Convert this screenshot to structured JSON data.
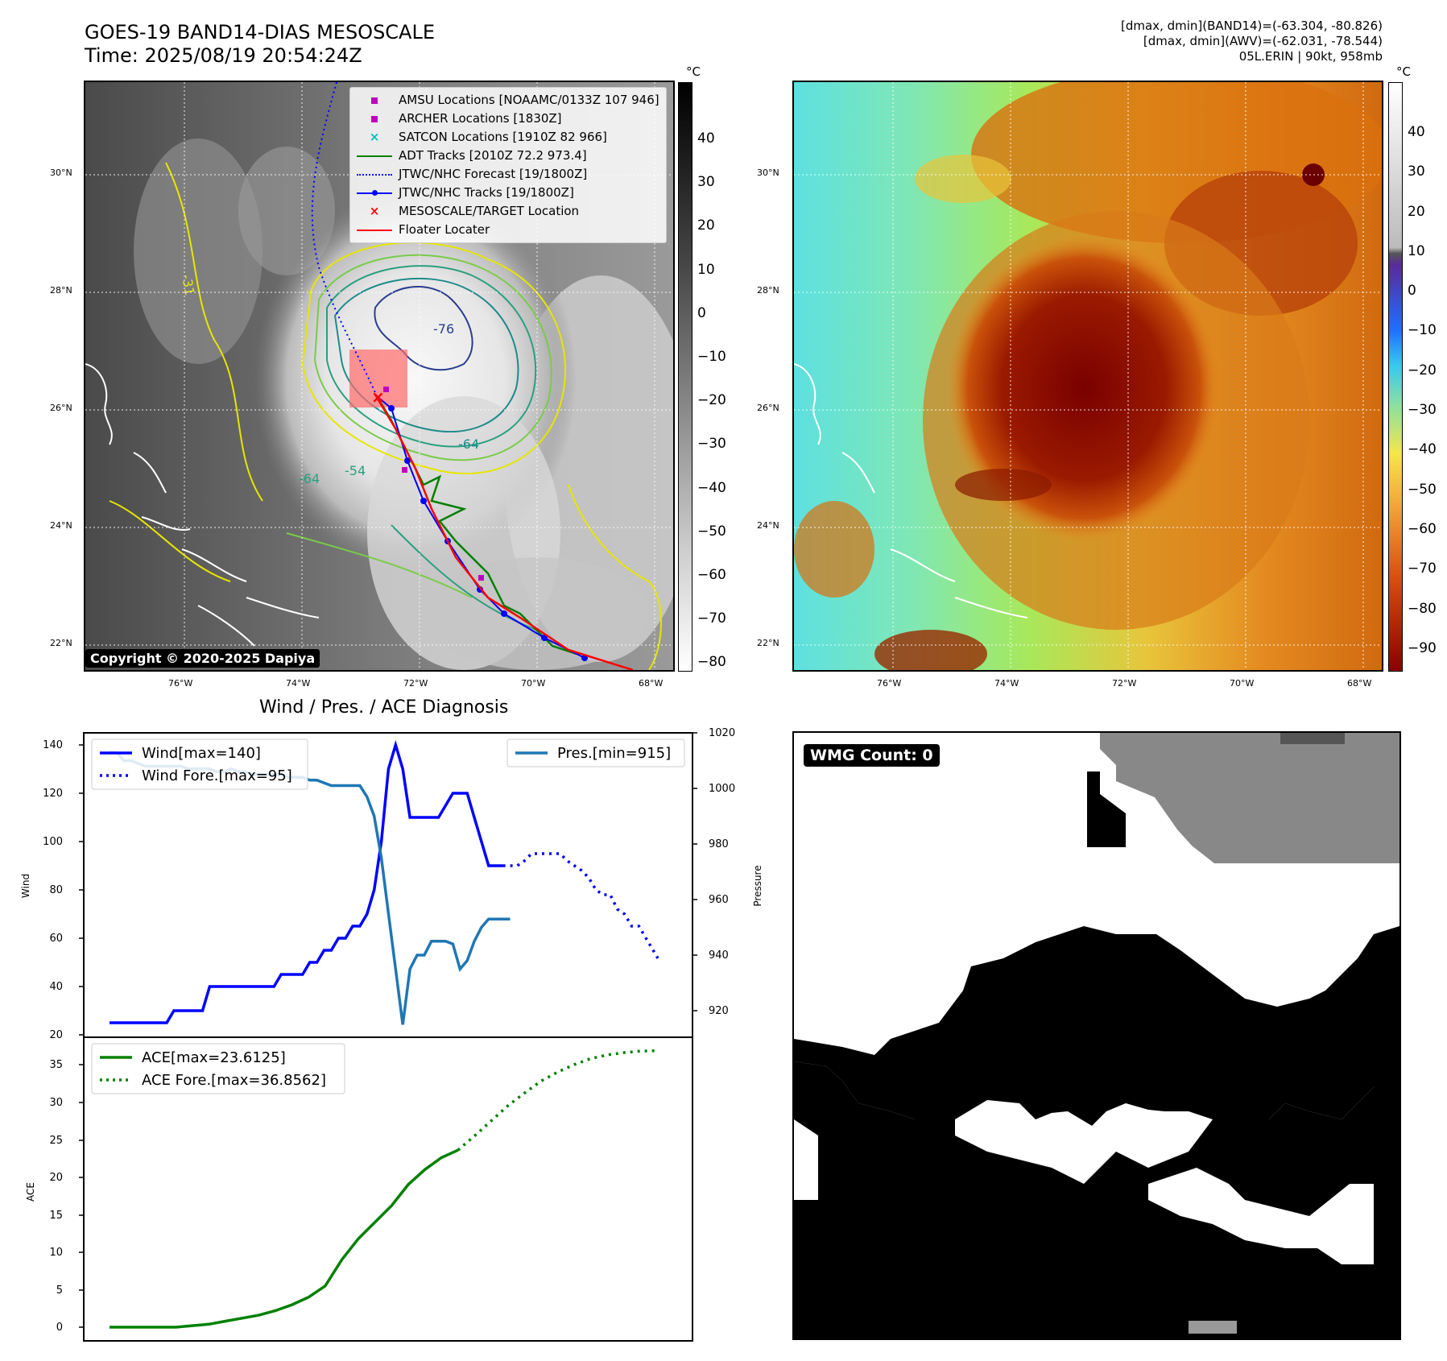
{
  "header": {
    "title_line1": "GOES-19 BAND14-DIAS MESOSCALE",
    "title_line2": "Time: 2025/08/19 20:54:24Z",
    "right_line1": "[dmax, dmin](BAND14)=(-63.304, -80.826)",
    "right_line2": "[dmax, dmin](AWV)=(-62.031, -78.544)",
    "right_line3": "05L.ERIN | 90kt, 958mb"
  },
  "map": {
    "lat_labels": [
      "30°N",
      "28°N",
      "26°N",
      "24°N",
      "22°N"
    ],
    "lon_labels": [
      "76°W",
      "74°W",
      "72°W",
      "70°W",
      "68°W"
    ],
    "contour_labels": [
      "-76",
      "-64",
      "-54",
      "-64",
      "-31"
    ],
    "copyright": "Copyright © 2020-2025 Dapiya",
    "legend": [
      {
        "label": "AMSU Locations [NOAAMC/0133Z 107 946]",
        "color": "#bf00bf",
        "marker": "square"
      },
      {
        "label": "ARCHER Locations [1830Z]",
        "color": "#bf00bf",
        "marker": "square"
      },
      {
        "label": "SATCON Locations [1910Z 82 966]",
        "color": "#00bfbf",
        "marker": "x"
      },
      {
        "label": "ADT Tracks [2010Z 72.2 973.4]",
        "color": "#008000",
        "marker": "line"
      },
      {
        "label": "JTWC/NHC Forecast [19/1800Z]",
        "color": "#0000ff",
        "marker": "dotted"
      },
      {
        "label": "JTWC/NHC Tracks [19/1800Z]",
        "color": "#0000ff",
        "marker": "line-dot"
      },
      {
        "label": "MESOSCALE/TARGET Location",
        "color": "#ff0000",
        "marker": "x"
      },
      {
        "label": "Floater Locater",
        "color": "#ff0000",
        "marker": "line"
      }
    ]
  },
  "colorbar_left": {
    "unit": "°C",
    "ticks": [
      "40",
      "30",
      "20",
      "10",
      "0",
      "−10",
      "−20",
      "−30",
      "−40",
      "−50",
      "−60",
      "−70",
      "−80"
    ]
  },
  "colorbar_right": {
    "unit": "°C",
    "ticks": [
      "40",
      "30",
      "20",
      "10",
      "0",
      "−10",
      "−20",
      "−30",
      "−40",
      "−50",
      "−60",
      "−70",
      "−80",
      "−90"
    ]
  },
  "diag": {
    "title": "Wind / Pres. / ACE Diagnosis",
    "wind_ylabel": "Wind",
    "pres_ylabel": "Pressure",
    "ace_ylabel": "ACE",
    "wind_ticks": [
      "140",
      "120",
      "100",
      "80",
      "60",
      "40",
      "20"
    ],
    "pres_ticks": [
      "1020",
      "1000",
      "980",
      "960",
      "940",
      "920"
    ],
    "ace_ticks": [
      "35",
      "30",
      "25",
      "20",
      "15",
      "10",
      "5",
      "0"
    ],
    "legend_wind": "Wind[max=140]",
    "legend_wind_fore": "Wind Fore.[max=95]",
    "legend_pres": "Pres.[min=915]",
    "legend_ace": "ACE[max=23.6125]",
    "legend_ace_fore": "ACE Fore.[max=36.8562]"
  },
  "wmg": {
    "label": "WMG Count: 0"
  },
  "colors": {
    "wind": "#0000ff",
    "pressure": "#1f77b4",
    "ace": "#008000"
  },
  "chart_data": [
    {
      "type": "line",
      "title": "Wind / Pres. / ACE Diagnosis",
      "ylabel": "Wind",
      "ylim": [
        20,
        145
      ],
      "series": [
        {
          "name": "Wind[max=140]",
          "x": [
            0,
            1,
            2,
            3,
            4,
            5,
            6,
            7,
            8,
            9,
            10,
            11,
            12,
            13,
            14,
            15,
            16,
            17,
            18,
            19,
            20,
            21,
            22,
            23,
            24,
            25,
            26,
            27,
            28,
            29,
            30,
            31,
            32,
            33,
            34,
            35,
            36,
            37,
            38,
            39,
            40,
            41,
            42,
            43,
            44,
            45,
            46,
            47,
            48,
            49,
            50,
            51,
            52,
            53,
            54,
            55,
            56,
            57,
            58,
            59,
            60,
            61,
            62,
            63,
            64
          ],
          "values": [
            25,
            25,
            25,
            25,
            25,
            25,
            25,
            25,
            25,
            30,
            30,
            30,
            30,
            30,
            40,
            40,
            40,
            40,
            40,
            40,
            40,
            40,
            40,
            40,
            45,
            45,
            45,
            45,
            50,
            50,
            55,
            55,
            60,
            60,
            65,
            65,
            70,
            80,
            100,
            130,
            140,
            130,
            110,
            110,
            110,
            110,
            110,
            115,
            120,
            120,
            120,
            110,
            100,
            90,
            90,
            90,
            null,
            null,
            null,
            null,
            null,
            null,
            null,
            null,
            null
          ]
        },
        {
          "name": "Wind Fore.[max=95]",
          "x": [
            55,
            56,
            57,
            58,
            59,
            60,
            61,
            62,
            63,
            64,
            65,
            66,
            67,
            68,
            69,
            70,
            71,
            72,
            73,
            74,
            75,
            76,
            77
          ],
          "values": [
            90,
            90,
            90,
            92,
            95,
            95,
            95,
            95,
            95,
            92,
            90,
            88,
            85,
            80,
            78,
            78,
            72,
            70,
            65,
            65,
            60,
            55,
            50
          ]
        }
      ]
    },
    {
      "type": "line",
      "ylabel": "Pressure",
      "ylim": [
        910,
        1020
      ],
      "series": [
        {
          "name": "Pres.[min=915]",
          "x": [
            0,
            1,
            2,
            3,
            4,
            5,
            6,
            7,
            8,
            9,
            10,
            11,
            12,
            13,
            14,
            15,
            16,
            17,
            18,
            19,
            20,
            21,
            22,
            23,
            24,
            25,
            26,
            27,
            28,
            29,
            30,
            31,
            32,
            33,
            34,
            35,
            36,
            37,
            38,
            39,
            40,
            41,
            42,
            43,
            44,
            45,
            46,
            47,
            48,
            49,
            50,
            51,
            52,
            53,
            54,
            55,
            56
          ],
          "values": [
            1013,
            1013,
            1010,
            1010,
            1009,
            1008,
            1008,
            1008,
            1008,
            1008,
            1008,
            1007,
            1007,
            1007,
            1007,
            1006,
            1006,
            1007,
            1006,
            1006,
            1005,
            1005,
            1005,
            1005,
            1005,
            1004,
            1004,
            1004,
            1003,
            1003,
            1002,
            1001,
            1001,
            1001,
            1001,
            1001,
            997,
            990,
            975,
            955,
            935,
            915,
            935,
            940,
            940,
            945,
            945,
            945,
            944,
            935,
            938,
            945,
            950,
            953,
            953,
            953,
            953
          ]
        }
      ]
    },
    {
      "type": "line",
      "ylabel": "ACE",
      "ylim": [
        -2,
        38
      ],
      "series": [
        {
          "name": "ACE[max=23.6125]",
          "x": [
            0,
            3,
            6,
            9,
            12,
            15,
            18,
            21,
            24,
            27,
            30,
            33,
            36,
            39,
            42,
            45,
            48,
            51,
            54,
            57,
            60,
            63
          ],
          "values": [
            0,
            0,
            0,
            0,
            0,
            0.2,
            0.4,
            0.8,
            1.2,
            1.6,
            2.2,
            3.0,
            4.0,
            5.5,
            9.0,
            11.8,
            14.0,
            16.2,
            19.0,
            21.0,
            22.6,
            23.6
          ]
        },
        {
          "name": "ACE Fore.[max=36.8562]",
          "x": [
            63,
            66,
            69,
            72,
            75,
            78,
            81,
            84,
            87,
            90,
            93,
            96,
            99
          ],
          "values": [
            23.6,
            25.5,
            27.5,
            29.5,
            31.2,
            32.8,
            34.0,
            35.0,
            35.8,
            36.3,
            36.6,
            36.8,
            36.86
          ]
        }
      ]
    }
  ]
}
